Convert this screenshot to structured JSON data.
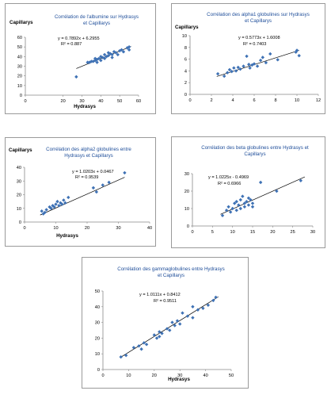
{
  "colors": {
    "marker": "#3f72b5",
    "title": "#1f4e9a",
    "trend": "#000000",
    "axis": "#888888",
    "border": "#9a9a9a"
  },
  "chart_data": [
    {
      "id": "albumine",
      "type": "scatter",
      "title": "Corrélation de l'albumine sur Hydrasys et Capillarys",
      "ylabel": "Capillarys",
      "xlabel": "Hydrasys",
      "equation": "y = 0.7892x + 6.2955",
      "r2": "R² = 0.887",
      "xlim": [
        0,
        60
      ],
      "ylim": [
        0,
        60
      ],
      "xticks": [
        0,
        20,
        30,
        40,
        50,
        60
      ],
      "yticks": [
        0,
        10,
        20,
        30,
        40,
        50,
        60
      ],
      "trend": {
        "slope": 0.7892,
        "intercept": 6.2955,
        "x_range": [
          27,
          56
        ]
      },
      "x": [
        27,
        33,
        34,
        35,
        36,
        37,
        37,
        38,
        38,
        39,
        40,
        40,
        41,
        42,
        42,
        43,
        44,
        44,
        45,
        46,
        46,
        47,
        48,
        49,
        50,
        51,
        52,
        54,
        55,
        55
      ],
      "y": [
        19,
        34,
        34,
        35,
        35,
        36,
        38,
        34,
        37,
        38,
        36,
        40,
        39,
        38,
        42,
        40,
        41,
        44,
        43,
        39,
        42,
        45,
        44,
        42,
        46,
        47,
        45,
        49,
        47,
        50
      ]
    },
    {
      "id": "alpha1",
      "type": "scatter",
      "title": "Corrélation des alpha1 globulines sur Hydrasys et Capillarys",
      "ylabel": "Capillarys",
      "xlabel": "",
      "equation": "y = 0.5773x + 1.6008",
      "r2": "R² = 0.7403",
      "xlim": [
        0,
        12
      ],
      "ylim": [
        0,
        10
      ],
      "xticks": [
        0,
        2,
        4,
        6,
        8,
        10,
        12
      ],
      "yticks": [
        0,
        2,
        4,
        6,
        8,
        10
      ],
      "trend": {
        "slope": 0.5773,
        "intercept": 1.6008,
        "x_range": [
          2.5,
          10.2
        ]
      },
      "x": [
        2.6,
        3.2,
        3.5,
        3.7,
        3.9,
        4.1,
        4.3,
        4.5,
        4.7,
        5.0,
        5.3,
        5.5,
        5.6,
        5.8,
        6.0,
        6.3,
        6.6,
        6.8,
        7.1,
        7.5,
        8.2,
        9.9,
        10.0,
        10.2
      ],
      "y": [
        3.5,
        3.1,
        3.7,
        4.2,
        3.9,
        4.5,
        4.0,
        4.6,
        4.3,
        4.8,
        6.5,
        5.1,
        4.5,
        5.0,
        5.2,
        4.8,
        5.8,
        6.3,
        5.4,
        6.9,
        5.9,
        7.2,
        7.5,
        6.6
      ]
    },
    {
      "id": "alpha2",
      "type": "scatter",
      "title": "Corrélation des alpha2 globulines entre Hydrasys et Capillarys",
      "ylabel": "Capillarys",
      "xlabel": "Hydrasys",
      "equation": "y = 1.0203x + 0.0467",
      "r2": "R² = 0.9539",
      "xlim": [
        0,
        40
      ],
      "ylim": [
        0,
        40
      ],
      "xticks": [
        0,
        10,
        20,
        30,
        40
      ],
      "yticks": [
        0,
        10,
        20,
        30,
        40
      ],
      "trend": {
        "slope": 1.0203,
        "intercept": 0.0467,
        "x_range": [
          5,
          32
        ]
      },
      "x": [
        5.5,
        6,
        6.5,
        7,
        8,
        8.5,
        9,
        9.5,
        10,
        10.5,
        11,
        11.5,
        12,
        12.5,
        13,
        14,
        22,
        23,
        25,
        27,
        32
      ],
      "y": [
        8,
        6,
        7,
        9,
        11,
        10,
        12,
        11,
        13,
        15,
        12,
        14,
        13,
        16,
        14,
        18,
        25,
        22,
        27,
        29,
        36
      ]
    },
    {
      "id": "beta",
      "type": "scatter",
      "title": "Corrélation des beta globulines entre Hydrasys et Capillarys",
      "ylabel": "",
      "xlabel": "",
      "equation": "y = 1.0225x - 0.4969",
      "r2": "R² = 0.6966",
      "xlim": [
        0,
        30
      ],
      "ylim": [
        0,
        30
      ],
      "xticks": [
        0,
        5,
        10,
        15,
        20,
        25,
        30
      ],
      "yticks": [
        0,
        10,
        20,
        30
      ],
      "trend": {
        "slope": 1.0225,
        "intercept": -0.4969,
        "x_range": [
          7,
          28
        ]
      },
      "x": [
        7.5,
        8.5,
        9,
        9.5,
        10,
        10.5,
        11,
        11,
        11.5,
        12,
        12,
        12.5,
        13,
        13,
        13.5,
        14,
        14,
        14.5,
        15,
        15,
        17,
        21,
        27
      ],
      "y": [
        6,
        9,
        11,
        8,
        10,
        13,
        9,
        14,
        12,
        15,
        10,
        17,
        13,
        11,
        14,
        12,
        16,
        15,
        11,
        13,
        25,
        20,
        26
      ]
    },
    {
      "id": "gamma",
      "type": "scatter",
      "title": "Corrélation des gammaglobulines entre Hydrasys et Capillarys",
      "ylabel": "",
      "xlabel": "Hydrasys",
      "equation": "y = 1.0111x + 0.8412",
      "r2": "R² = 0.9511",
      "xlim": [
        0,
        50
      ],
      "ylim": [
        0,
        50
      ],
      "xticks": [
        0,
        10,
        20,
        30,
        40,
        50
      ],
      "yticks": [
        0,
        10,
        20,
        30,
        40,
        50
      ],
      "trend": {
        "slope": 1.0111,
        "intercept": 0.8412,
        "x_range": [
          7,
          45
        ]
      },
      "x": [
        7,
        9,
        12,
        14,
        15,
        16,
        17,
        20,
        21,
        22,
        22,
        23,
        25,
        26,
        27,
        28,
        29,
        30,
        31,
        33,
        35,
        35,
        37,
        39,
        41,
        43,
        44
      ],
      "y": [
        8,
        9,
        14,
        15,
        13,
        17,
        16,
        22,
        20,
        21,
        24,
        23,
        26,
        25,
        30,
        28,
        31,
        29,
        36,
        34,
        33,
        40,
        38,
        39,
        41,
        44,
        46
      ]
    }
  ]
}
